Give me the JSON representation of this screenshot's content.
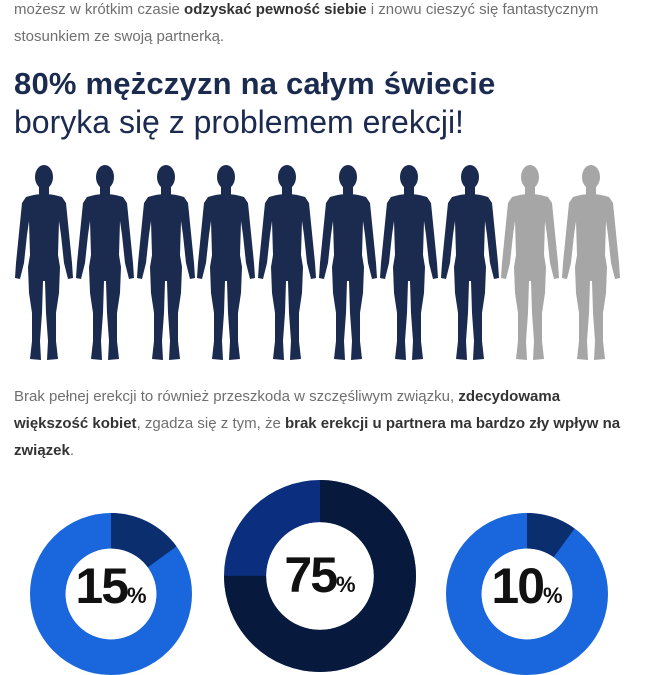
{
  "intro": {
    "part1": "możesz w krótkim czasie ",
    "bold1": "odzyskać pewność siebie",
    "part2": " i znowu cieszyć się fantastycznym stosunkiem ze swoją partnerką."
  },
  "headline": {
    "bold": "80% mężczyzn na całym świecie",
    "normal": "boryka się z problemem erekcji!"
  },
  "figures": {
    "total": 10,
    "highlighted": 8,
    "color_highlight": "#1b2a4f",
    "color_rest": "#a6a6a6",
    "icon": "man-silhouette-icon"
  },
  "paragraph": {
    "part1": "Brak pełnej erekcji to również przeszkoda w szczęśliwym związku, ",
    "bold1": "zdecydowama większość kobiet",
    "part2": ", zgadza się z tym, że ",
    "bold2": "brak erekcji u partnera ma bardzo zły wpływ na związek",
    "part3": "."
  },
  "stats": [
    {
      "value": "15",
      "unit": "%",
      "fraction": 0.15,
      "ring": "#1a66dc",
      "arc": "#0a2e6e"
    },
    {
      "value": "75",
      "unit": "%",
      "fraction": 0.75,
      "ring": "#0b2f7e",
      "arc": "#071a3d"
    },
    {
      "value": "10",
      "unit": "%",
      "fraction": 0.1,
      "ring": "#1a66dc",
      "arc": "#0a2e6e"
    }
  ],
  "colors": {
    "text": "#6f6f6f",
    "dark_navy": "#1b2a4f"
  }
}
